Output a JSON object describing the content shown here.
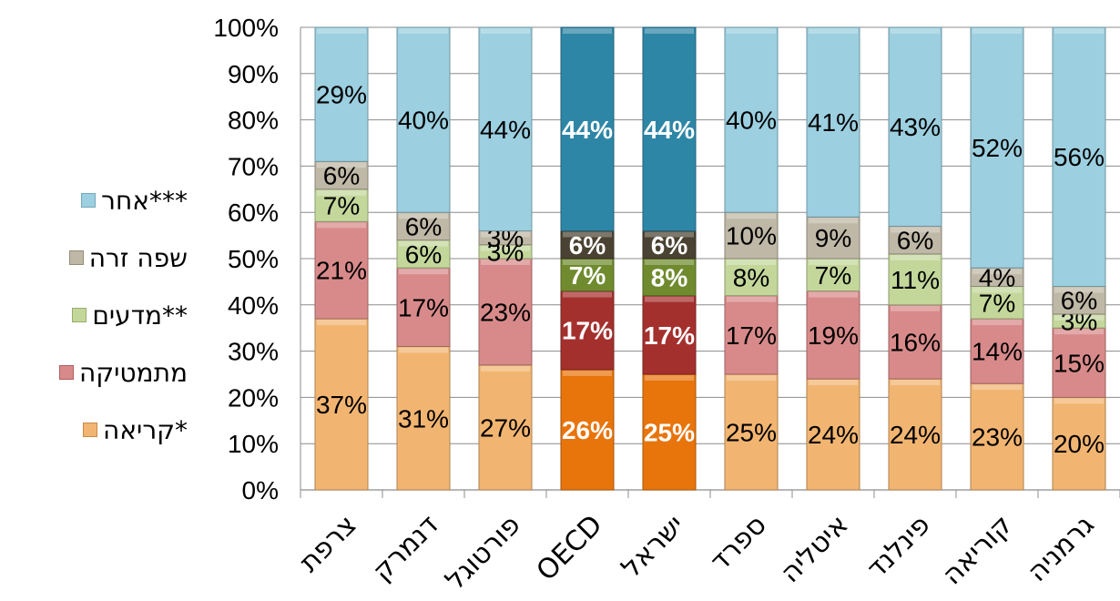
{
  "chart_data": {
    "type": "bar",
    "stacked": true,
    "ylim": [
      0,
      100
    ],
    "yticks": [
      "0%",
      "10%",
      "20%",
      "30%",
      "40%",
      "50%",
      "60%",
      "70%",
      "80%",
      "90%",
      "100%"
    ],
    "categories": [
      "צרפת",
      "דנמרק",
      "פורטוגל",
      "OECD",
      "ישראל",
      "ספרד",
      "איטליה",
      "פינלנד",
      "קוריאה",
      "גרמניה"
    ],
    "highlighted_categories": [
      "OECD",
      "ישראל"
    ],
    "series": [
      {
        "name": "*קריאה",
        "color": "#F2B571",
        "highlight_color": "#E8740C",
        "values": [
          37,
          31,
          27,
          26,
          25,
          25,
          24,
          24,
          23,
          20
        ],
        "labels": [
          "37%",
          "31%",
          "27%",
          "26%",
          "25%",
          "25%",
          "24%",
          "24%",
          "23%",
          "20%"
        ]
      },
      {
        "name": "מתמטיקה",
        "color": "#D88A8A",
        "highlight_color": "#A4302E",
        "values": [
          21,
          17,
          23,
          17,
          17,
          17,
          19,
          16,
          14,
          15
        ],
        "labels": [
          "21%",
          "17%",
          "23%",
          "17%",
          "17%",
          "17%",
          "19%",
          "16%",
          "14%",
          "15%"
        ]
      },
      {
        "name": "**מדעים",
        "color": "#C4D79B",
        "highlight_color": "#6F8B2E",
        "values": [
          7,
          6,
          3,
          7,
          8,
          8,
          7,
          11,
          7,
          3
        ],
        "labels": [
          "7%",
          "6%",
          "3%",
          "7%",
          "8%",
          "8%",
          "7%",
          "11%",
          "7%",
          "3%"
        ]
      },
      {
        "name": "שפה זרה",
        "color": "#BFB8A6",
        "highlight_color": "#4A4232",
        "values": [
          6,
          6,
          3,
          6,
          6,
          10,
          9,
          6,
          4,
          6
        ],
        "labels": [
          "6%",
          "6%",
          "3%",
          "6%",
          "6%",
          "10%",
          "9%",
          "6%",
          "4%",
          "6%"
        ]
      },
      {
        "name": "***אחר",
        "color": "#9CCFE0",
        "highlight_color": "#2E86A6",
        "values": [
          29,
          40,
          44,
          44,
          44,
          40,
          41,
          43,
          52,
          56
        ],
        "labels": [
          "29%",
          "40%",
          "44%",
          "44%",
          "44%",
          "40%",
          "41%",
          "43%",
          "52%",
          "56%"
        ]
      }
    ],
    "legend_position": "left",
    "grid": true
  }
}
